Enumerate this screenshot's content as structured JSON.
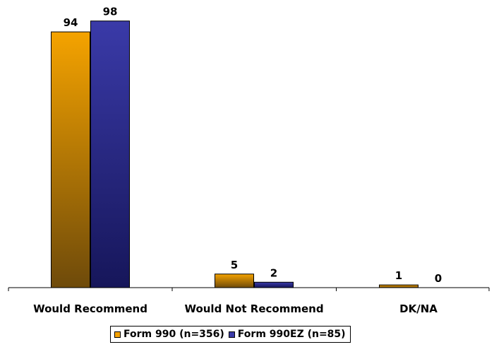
{
  "chart_data": {
    "type": "bar",
    "categories": [
      "Would Recommend",
      "Would Not Recommend",
      "DK/NA"
    ],
    "series": [
      {
        "name": "Form 990 (n=356)",
        "values": [
          94,
          5,
          1
        ],
        "color": "#f5a300",
        "color_dark": "#6e4a0a"
      },
      {
        "name": "Form 990EZ (n=85)",
        "values": [
          98,
          2,
          0
        ],
        "color": "#3a3aa8",
        "color_dark": "#16165a"
      }
    ],
    "ylim": [
      0,
      100
    ],
    "data_labels": true,
    "legend": "bottom",
    "grid": false,
    "xlabel": "",
    "ylabel": ""
  }
}
